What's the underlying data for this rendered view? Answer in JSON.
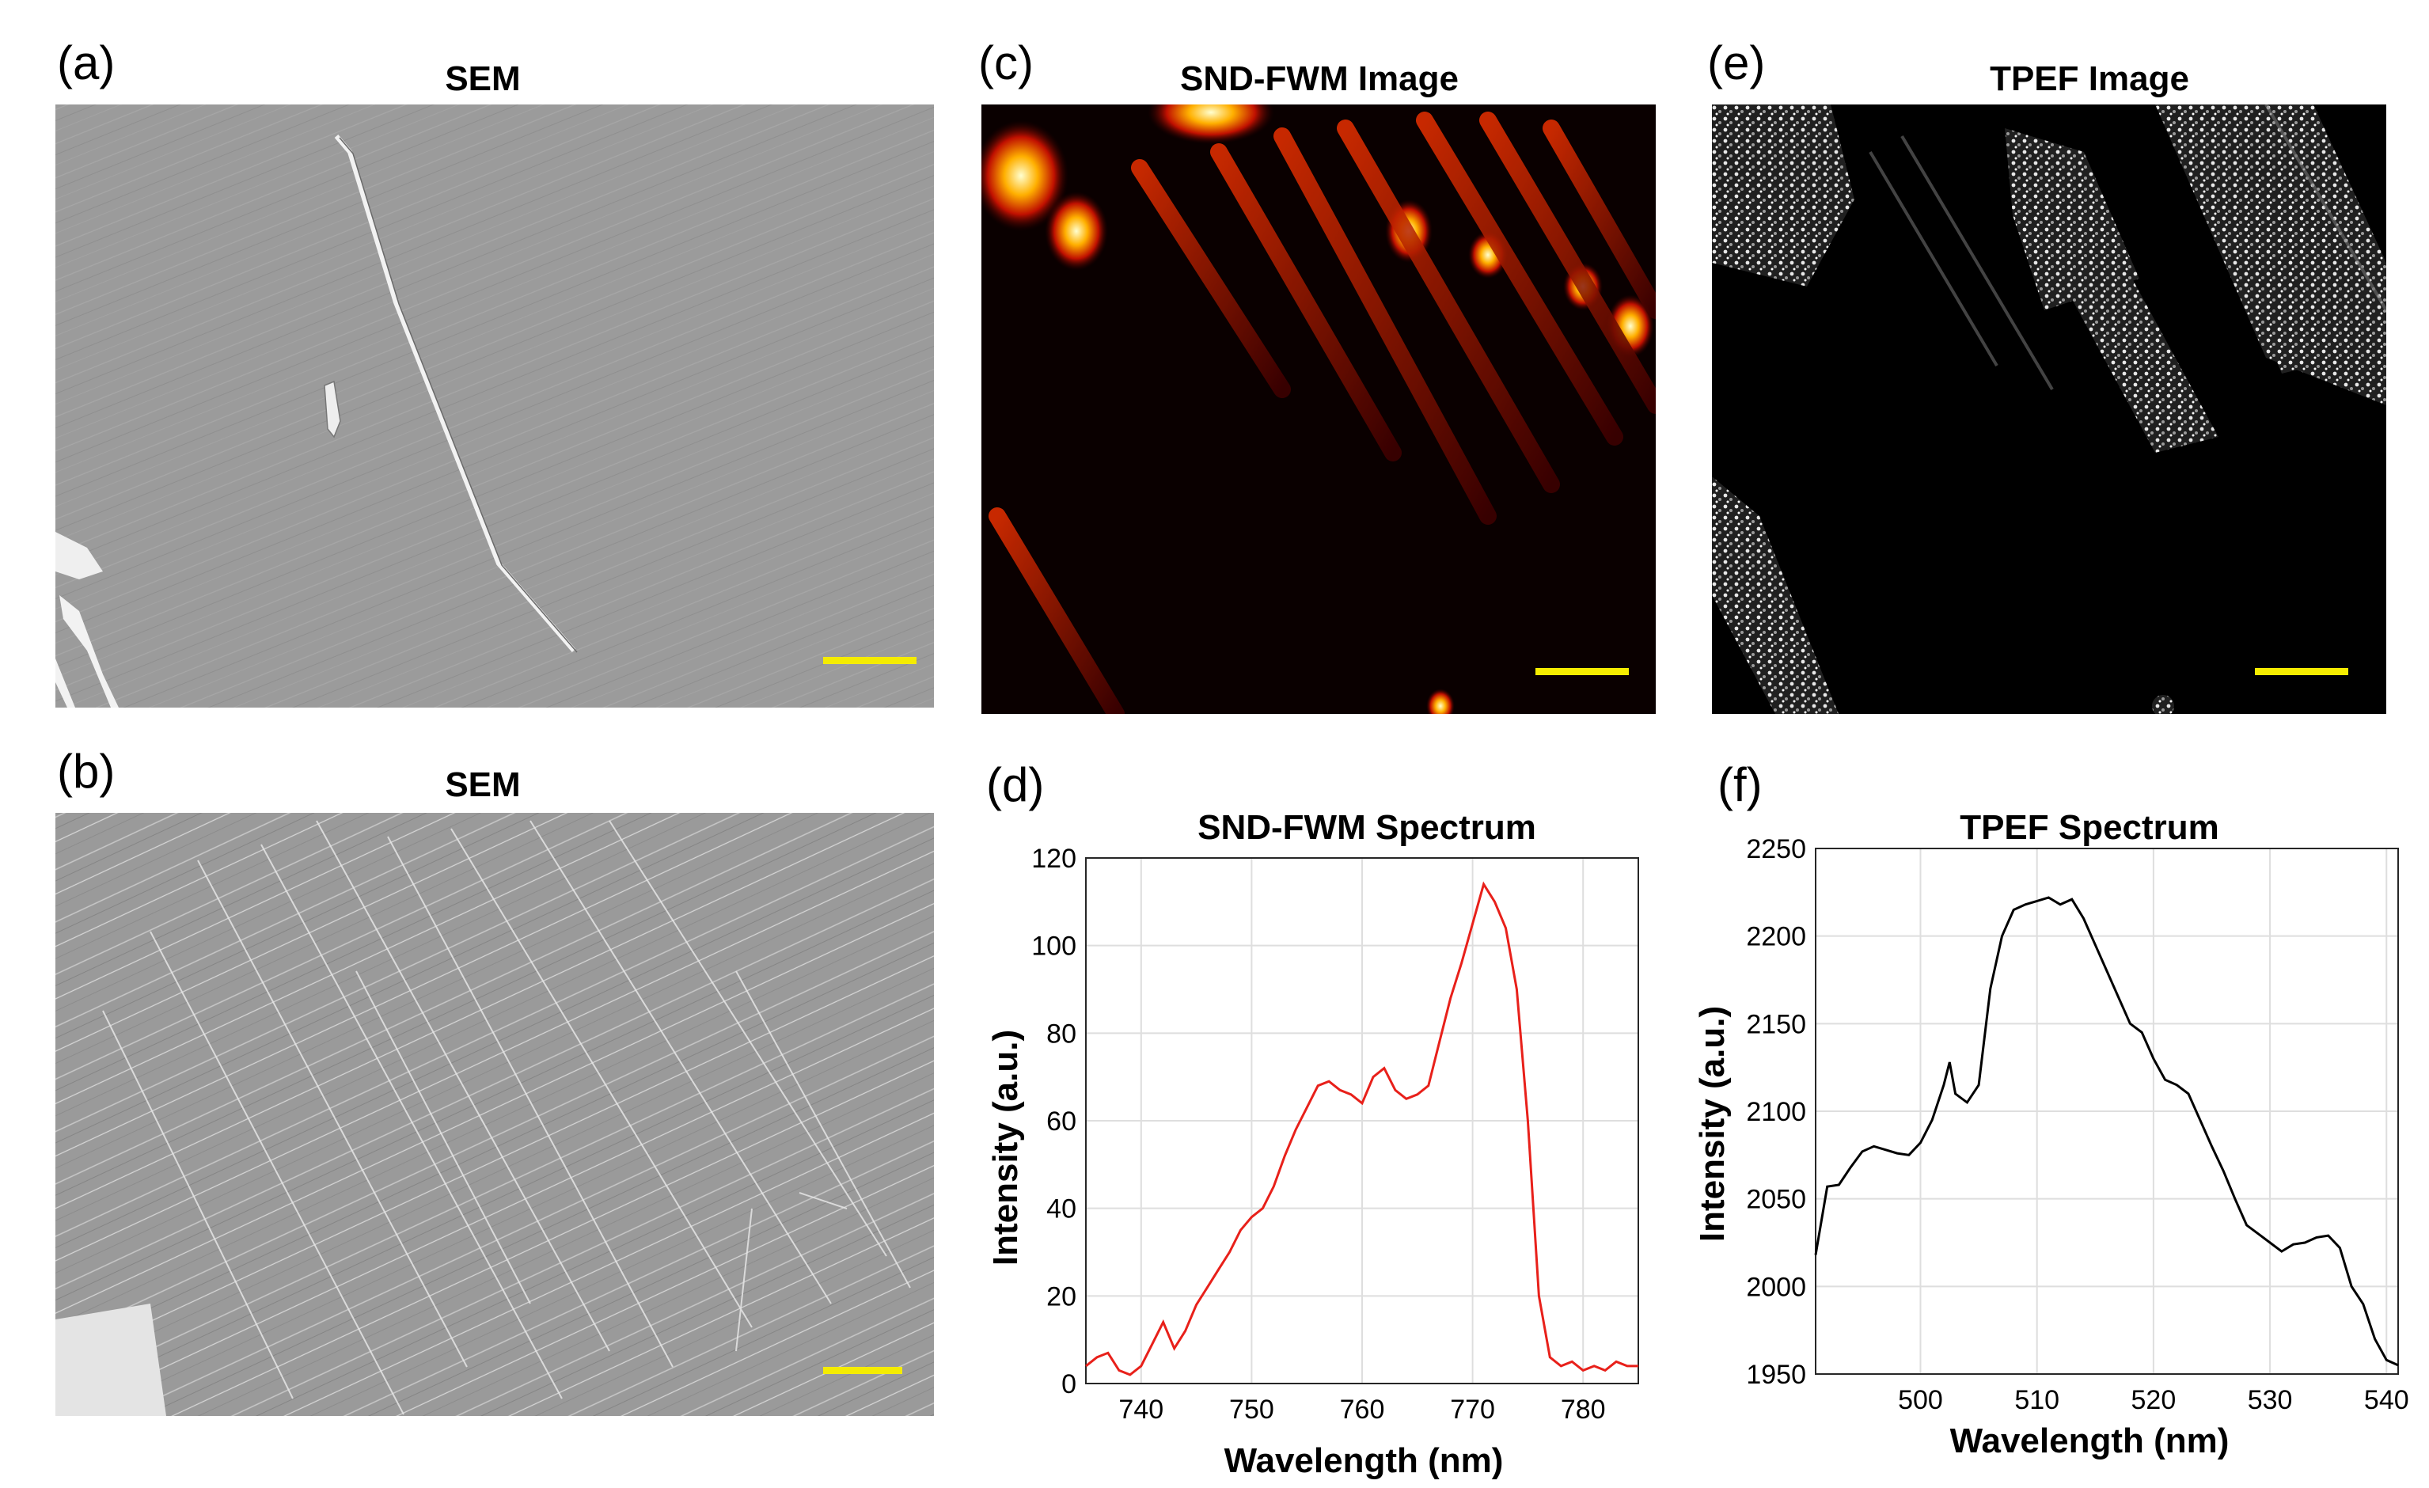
{
  "panels": {
    "a": {
      "letter": "(a)",
      "title": "SEM"
    },
    "b": {
      "letter": "(b)",
      "title": "SEM"
    },
    "c": {
      "letter": "(c)",
      "title": "SND-FWM Image"
    },
    "d": {
      "letter": "(d)",
      "title": "SND-FWM Spectrum"
    },
    "e": {
      "letter": "(e)",
      "title": "TPEF Image"
    },
    "f": {
      "letter": "(f)",
      "title": "TPEF Spectrum"
    }
  },
  "colors": {
    "scale_bar": "#f5ec00",
    "snd_line": "#e8201a",
    "tpef_line": "#000000",
    "sem_bg": "#9a9a9a"
  },
  "chart_data": [
    {
      "panel": "d",
      "type": "line",
      "title": "SND-FWM Spectrum",
      "xlabel": "Wavelength (nm)",
      "ylabel": "Intensity (a.u.)",
      "xlim": [
        735,
        785
      ],
      "ylim": [
        0,
        120
      ],
      "xticks": [
        740,
        750,
        760,
        770,
        780
      ],
      "yticks": [
        0,
        20,
        40,
        60,
        80,
        100,
        120
      ],
      "grid": true,
      "series": [
        {
          "color": "#e8201a",
          "x": [
            735,
            736,
            737,
            738,
            739,
            740,
            741,
            742,
            743,
            744,
            745,
            746,
            747,
            748,
            749,
            750,
            751,
            752,
            753,
            754,
            755,
            756,
            757,
            758,
            759,
            760,
            761,
            762,
            763,
            764,
            765,
            766,
            767,
            768,
            769,
            770,
            771,
            772,
            773,
            774,
            775,
            776,
            777,
            778,
            779,
            780,
            781,
            782,
            783,
            784,
            785
          ],
          "y": [
            4,
            6,
            7,
            3,
            2,
            4,
            9,
            14,
            8,
            12,
            18,
            22,
            26,
            30,
            35,
            38,
            40,
            45,
            52,
            58,
            63,
            68,
            69,
            67,
            66,
            64,
            70,
            72,
            67,
            65,
            66,
            68,
            78,
            88,
            96,
            105,
            114,
            110,
            104,
            90,
            60,
            20,
            6,
            4,
            5,
            3,
            4,
            3,
            5,
            4,
            4
          ]
        }
      ]
    },
    {
      "panel": "f",
      "type": "line",
      "title": "TPEF Spectrum",
      "xlabel": "Wavelength (nm)",
      "ylabel": "Intensity (a.u.)",
      "xlim": [
        491,
        541
      ],
      "ylim": [
        1950,
        2250
      ],
      "xticks": [
        500,
        510,
        520,
        530,
        540
      ],
      "yticks": [
        1950,
        2000,
        2050,
        2100,
        2150,
        2200,
        2250
      ],
      "grid": true,
      "series": [
        {
          "color": "#000000",
          "x": [
            491,
            492,
            493,
            494,
            495,
            496,
            497,
            498,
            499,
            500,
            501,
            502,
            502.5,
            503,
            504,
            505,
            506,
            507,
            508,
            509,
            510,
            511,
            512,
            513,
            514,
            515,
            516,
            517,
            518,
            519,
            520,
            521,
            522,
            523,
            524,
            525,
            526,
            527,
            528,
            529,
            530,
            531,
            532,
            533,
            534,
            535,
            536,
            537,
            538,
            539,
            540,
            541
          ],
          "y": [
            2018,
            2057,
            2058,
            2068,
            2077,
            2080,
            2078,
            2076,
            2075,
            2082,
            2095,
            2115,
            2128,
            2110,
            2105,
            2115,
            2170,
            2200,
            2215,
            2218,
            2220,
            2222,
            2218,
            2221,
            2210,
            2195,
            2180,
            2165,
            2150,
            2145,
            2130,
            2118,
            2115,
            2110,
            2095,
            2080,
            2066,
            2050,
            2035,
            2030,
            2025,
            2020,
            2024,
            2025,
            2028,
            2029,
            2022,
            2000,
            1990,
            1970,
            1958,
            1955
          ]
        }
      ]
    }
  ]
}
